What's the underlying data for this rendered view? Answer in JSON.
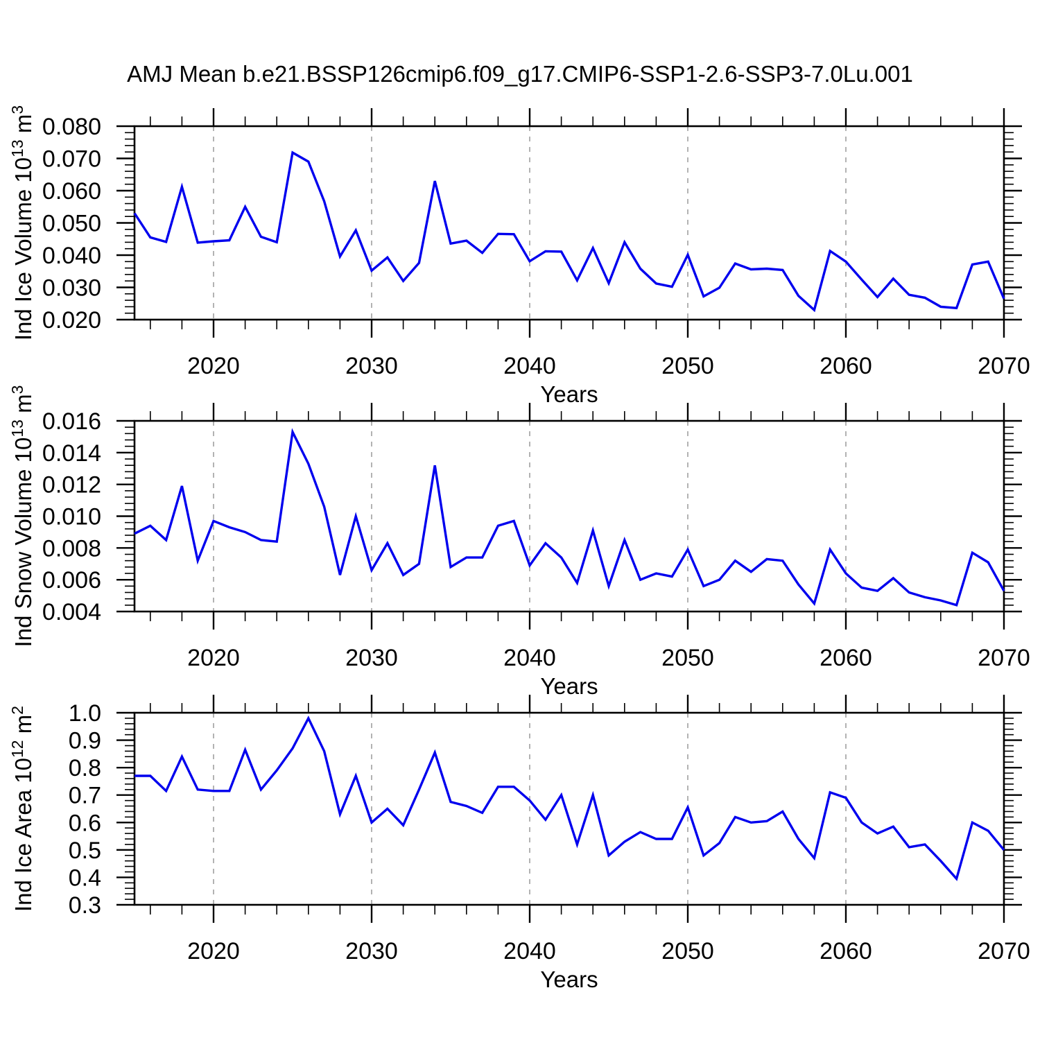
{
  "title": "AMJ Mean b.e21.BSSP126cmip6.f09_g17.CMIP6-SSP1-2.6-SSP3-7.0Lu.001",
  "line_color": "#0000ee",
  "axis_color": "#000000",
  "grid_color": "#a0a0a0",
  "chart_data": [
    {
      "type": "line",
      "id": "ind-ice-volume",
      "ylabel_segments": [
        {
          "t": "Ind Ice Volume 10"
        },
        {
          "t": "13",
          "sup": true
        },
        {
          "t": " m"
        },
        {
          "t": "3",
          "sup": true
        }
      ],
      "xlabel": "Years",
      "xlim": [
        2015,
        2070
      ],
      "xticks": [
        2020,
        2030,
        2040,
        2050,
        2060,
        2070
      ],
      "xtick_labels": [
        "2020",
        "2030",
        "2040",
        "2050",
        "2060",
        "2070"
      ],
      "x_minor_step": 2,
      "grid_x": [
        2020,
        2030,
        2040,
        2050,
        2060
      ],
      "ylim": [
        0.02,
        0.08
      ],
      "yticks": [
        0.02,
        0.03,
        0.04,
        0.05,
        0.06,
        0.07,
        0.08
      ],
      "ytick_labels": [
        "0.020",
        "0.030",
        "0.040",
        "0.050",
        "0.060",
        "0.070",
        "0.080"
      ],
      "y_minor_step": 0.002,
      "x": [
        2015,
        2016,
        2017,
        2018,
        2019,
        2020,
        2021,
        2022,
        2023,
        2024,
        2025,
        2026,
        2027,
        2028,
        2029,
        2030,
        2031,
        2032,
        2033,
        2034,
        2035,
        2036,
        2037,
        2038,
        2039,
        2040,
        2041,
        2042,
        2043,
        2044,
        2045,
        2046,
        2047,
        2048,
        2049,
        2050,
        2051,
        2052,
        2053,
        2054,
        2055,
        2056,
        2057,
        2058,
        2059,
        2060,
        2061,
        2062,
        2063,
        2064,
        2065,
        2066,
        2067,
        2068,
        2069,
        2070
      ],
      "values": [
        0.053,
        0.0455,
        0.0441,
        0.0612,
        0.0439,
        0.0443,
        0.0446,
        0.055,
        0.0457,
        0.044,
        0.0718,
        0.069,
        0.0567,
        0.0396,
        0.0477,
        0.0352,
        0.0393,
        0.032,
        0.0376,
        0.063,
        0.0436,
        0.0445,
        0.0407,
        0.0466,
        0.0465,
        0.0381,
        0.0412,
        0.0411,
        0.0322,
        0.0422,
        0.0313,
        0.044,
        0.0358,
        0.0312,
        0.0302,
        0.0401,
        0.0272,
        0.0299,
        0.0374,
        0.0356,
        0.0358,
        0.0354,
        0.0274,
        0.023,
        0.0413,
        0.038,
        0.0324,
        0.027,
        0.0327,
        0.0277,
        0.0268,
        0.024,
        0.0236,
        0.0371,
        0.038,
        0.0265
      ]
    },
    {
      "type": "line",
      "id": "ind-snow-volume",
      "ylabel_segments": [
        {
          "t": "Ind Snow Volume 10"
        },
        {
          "t": "13",
          "sup": true
        },
        {
          "t": " m"
        },
        {
          "t": "3",
          "sup": true
        }
      ],
      "xlabel": "Years",
      "xlim": [
        2015,
        2070
      ],
      "xticks": [
        2020,
        2030,
        2040,
        2050,
        2060,
        2070
      ],
      "xtick_labels": [
        "2020",
        "2030",
        "2040",
        "2050",
        "2060",
        "2070"
      ],
      "x_minor_step": 2,
      "grid_x": [
        2020,
        2030,
        2040,
        2050,
        2060
      ],
      "ylim": [
        0.004,
        0.016
      ],
      "yticks": [
        0.004,
        0.006,
        0.008,
        0.01,
        0.012,
        0.014,
        0.016
      ],
      "ytick_labels": [
        "0.004",
        "0.006",
        "0.008",
        "0.010",
        "0.012",
        "0.014",
        "0.016"
      ],
      "y_minor_step": 0.0004,
      "x": [
        2015,
        2016,
        2017,
        2018,
        2019,
        2020,
        2021,
        2022,
        2023,
        2024,
        2025,
        2026,
        2027,
        2028,
        2029,
        2030,
        2031,
        2032,
        2033,
        2034,
        2035,
        2036,
        2037,
        2038,
        2039,
        2040,
        2041,
        2042,
        2043,
        2044,
        2045,
        2046,
        2047,
        2048,
        2049,
        2050,
        2051,
        2052,
        2053,
        2054,
        2055,
        2056,
        2057,
        2058,
        2059,
        2060,
        2061,
        2062,
        2063,
        2064,
        2065,
        2066,
        2067,
        2068,
        2069,
        2070
      ],
      "values": [
        0.0089,
        0.0094,
        0.0085,
        0.0119,
        0.0072,
        0.0097,
        0.0093,
        0.009,
        0.0085,
        0.0084,
        0.0153,
        0.0133,
        0.0106,
        0.0063,
        0.01,
        0.0066,
        0.0083,
        0.0063,
        0.007,
        0.0132,
        0.0068,
        0.0074,
        0.0074,
        0.0094,
        0.0097,
        0.0069,
        0.0083,
        0.0074,
        0.0058,
        0.0091,
        0.0056,
        0.0085,
        0.006,
        0.0064,
        0.0062,
        0.0079,
        0.0056,
        0.006,
        0.0072,
        0.0065,
        0.0073,
        0.0072,
        0.0057,
        0.0045,
        0.0079,
        0.0064,
        0.0055,
        0.0053,
        0.0061,
        0.0052,
        0.0049,
        0.0047,
        0.0044,
        0.0077,
        0.0071,
        0.0053
      ]
    },
    {
      "type": "line",
      "id": "ind-ice-area",
      "ylabel_segments": [
        {
          "t": "Ind Ice Area 10"
        },
        {
          "t": "12",
          "sup": true
        },
        {
          "t": " m"
        },
        {
          "t": "2",
          "sup": true
        }
      ],
      "xlabel": "Years",
      "xlim": [
        2015,
        2070
      ],
      "xticks": [
        2020,
        2030,
        2040,
        2050,
        2060,
        2070
      ],
      "xtick_labels": [
        "2020",
        "2030",
        "2040",
        "2050",
        "2060",
        "2070"
      ],
      "x_minor_step": 2,
      "grid_x": [
        2020,
        2030,
        2040,
        2050,
        2060
      ],
      "ylim": [
        0.3,
        1.0
      ],
      "yticks": [
        0.3,
        0.4,
        0.5,
        0.6,
        0.7,
        0.8,
        0.9,
        1.0
      ],
      "ytick_labels": [
        "0.3",
        "0.4",
        "0.5",
        "0.6",
        "0.7",
        "0.8",
        "0.9",
        "1.0"
      ],
      "y_minor_step": 0.02,
      "x": [
        2015,
        2016,
        2017,
        2018,
        2019,
        2020,
        2021,
        2022,
        2023,
        2024,
        2025,
        2026,
        2027,
        2028,
        2029,
        2030,
        2031,
        2032,
        2033,
        2034,
        2035,
        2036,
        2037,
        2038,
        2039,
        2040,
        2041,
        2042,
        2043,
        2044,
        2045,
        2046,
        2047,
        2048,
        2049,
        2050,
        2051,
        2052,
        2053,
        2054,
        2055,
        2056,
        2057,
        2058,
        2059,
        2060,
        2061,
        2062,
        2063,
        2064,
        2065,
        2066,
        2067,
        2068,
        2069,
        2070
      ],
      "values": [
        0.77,
        0.77,
        0.715,
        0.84,
        0.72,
        0.715,
        0.715,
        0.865,
        0.72,
        0.79,
        0.87,
        0.98,
        0.86,
        0.63,
        0.77,
        0.6,
        0.65,
        0.59,
        0.72,
        0.855,
        0.675,
        0.66,
        0.635,
        0.73,
        0.73,
        0.68,
        0.61,
        0.7,
        0.52,
        0.7,
        0.48,
        0.53,
        0.565,
        0.54,
        0.54,
        0.655,
        0.48,
        0.525,
        0.62,
        0.6,
        0.605,
        0.64,
        0.54,
        0.47,
        0.71,
        0.69,
        0.6,
        0.56,
        0.585,
        0.51,
        0.52,
        0.46,
        0.395,
        0.6,
        0.57,
        0.5
      ]
    }
  ]
}
